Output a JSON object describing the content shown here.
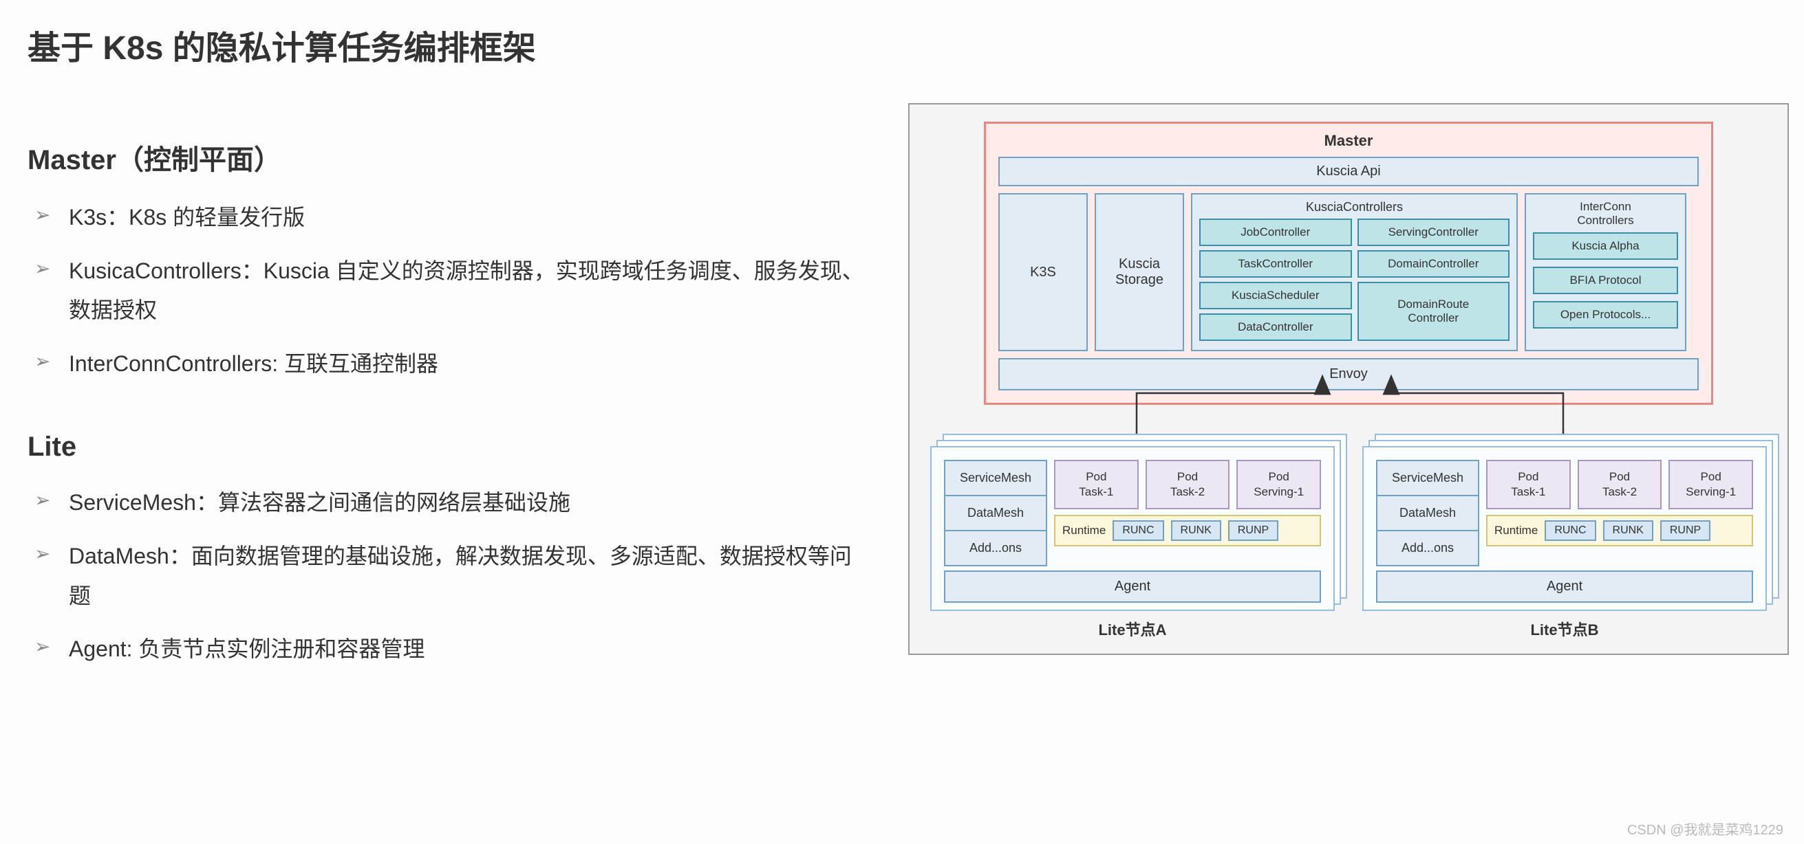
{
  "title": "基于 K8s 的隐私计算任务编排框架",
  "left": {
    "section1": {
      "heading": "Master（控制平面）",
      "items": [
        "K3s：K8s 的轻量发行版",
        "KusicaControllers：Kuscia 自定义的资源控制器，实现跨域任务调度、服务发现、数据授权",
        "InterConnControllers: 互联互通控制器"
      ]
    },
    "section2": {
      "heading": "Lite",
      "items": [
        "ServiceMesh：算法容器之间通信的网络层基础设施",
        "DataMesh：面向数据管理的基础设施，解决数据发现、多源适配、数据授权等问题",
        "Agent: 负责节点实例注册和容器管理"
      ]
    }
  },
  "diagram": {
    "master": {
      "title": "Master",
      "api": "Kuscia Api",
      "k3s": "K3S",
      "storage": "Kuscia\nStorage",
      "kusciaCtrls": {
        "title": "KusciaControllers",
        "left": [
          "JobController",
          "TaskController",
          "KusciaScheduler",
          "DataController"
        ],
        "right": [
          "ServingController",
          "DomainController",
          "DomainRoute\nController"
        ]
      },
      "interconn": {
        "title": "InterConn\nControllers",
        "items": [
          "Kuscia Alpha",
          "BFIA Protocol",
          "Open Protocols..."
        ]
      },
      "envoy": "Envoy"
    },
    "lite": {
      "mesh": [
        "ServiceMesh",
        "DataMesh",
        "Add...ons"
      ],
      "pods": [
        "Pod\nTask-1",
        "Pod\nTask-2",
        "Pod\nServing-1"
      ],
      "runtimeLabel": "Runtime",
      "runtimes": [
        "RUNC",
        "RUNK",
        "RUNP"
      ],
      "agent": "Agent",
      "nodeA": "Lite节点A",
      "nodeB": "Lite节点B"
    }
  },
  "colors": {
    "masterBorder": "#e8867f",
    "masterBg": "#fdecea",
    "blueBorder": "#6fa0c7",
    "blueBg": "#e1ecf5",
    "tealBorder": "#3a8fa8",
    "tealBg": "#bfe4e8",
    "purpleBorder": "#a898c4",
    "purpleBg": "#ede7f3",
    "yellowBorder": "#d4c46a",
    "yellowBg": "#fbf7dc",
    "liteBlue": "#94bde0",
    "outerBorder": "#999999",
    "outerBg": "#f4f4f4"
  },
  "watermark": "CSDN @我就是菜鸡1229"
}
